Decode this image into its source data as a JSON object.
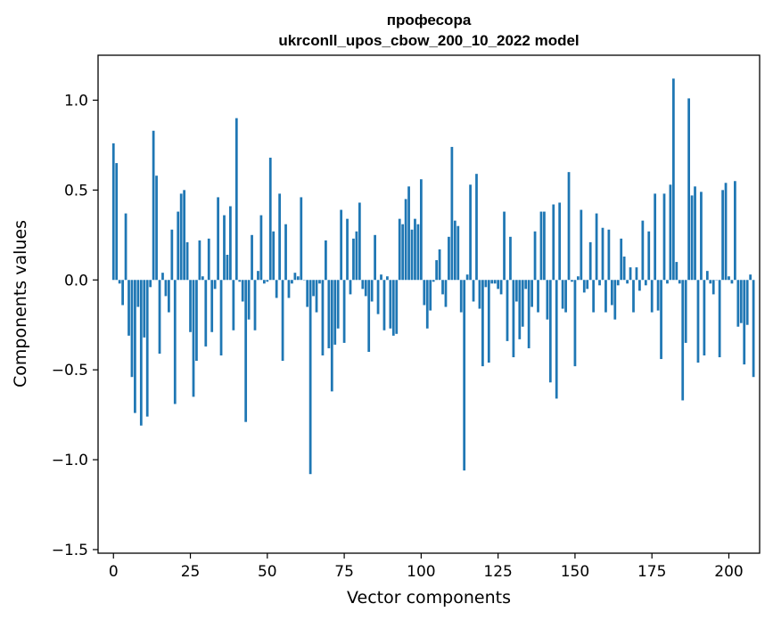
{
  "chart_data": {
    "type": "bar",
    "title_lines": [
      "професора",
      "ukrconll_upos_cbow_200_10_2022 model"
    ],
    "xlabel": "Vector components",
    "ylabel": "Components values",
    "xlim": [
      -5,
      210
    ],
    "ylim": [
      -1.52,
      1.25
    ],
    "xticks": [
      0,
      25,
      50,
      75,
      100,
      125,
      150,
      175,
      200
    ],
    "xtick_labels": [
      "0",
      "25",
      "50",
      "75",
      "100",
      "125",
      "150",
      "175",
      "200"
    ],
    "yticks": [
      -1.5,
      -1.0,
      -0.5,
      0.0,
      0.5,
      1.0
    ],
    "ytick_labels": [
      "−1.5",
      "−1.0",
      "−0.5",
      "0.0",
      "0.5",
      "1.0"
    ],
    "grid": false,
    "bar_color": "#1f77b4",
    "values": [
      0.76,
      0.65,
      -0.02,
      -0.14,
      0.37,
      -0.31,
      -0.54,
      -0.74,
      -0.15,
      -0.81,
      -0.32,
      -0.76,
      -0.04,
      0.83,
      0.58,
      -0.41,
      0.04,
      -0.09,
      -0.18,
      0.28,
      -0.69,
      0.38,
      0.48,
      0.5,
      0.21,
      -0.29,
      -0.65,
      -0.45,
      0.22,
      0.02,
      -0.37,
      0.23,
      -0.29,
      -0.05,
      0.46,
      -0.42,
      0.36,
      0.14,
      0.41,
      -0.28,
      0.9,
      -0.01,
      -0.12,
      -0.79,
      -0.22,
      0.25,
      -0.28,
      0.05,
      0.36,
      -0.02,
      -0.01,
      0.68,
      0.27,
      -0.1,
      0.48,
      -0.45,
      0.31,
      -0.1,
      -0.02,
      0.04,
      0.02,
      0.46,
      0.0,
      -0.15,
      -1.08,
      -0.09,
      -0.18,
      -0.02,
      -0.42,
      0.22,
      -0.38,
      -0.62,
      -0.36,
      -0.27,
      0.39,
      -0.35,
      0.34,
      -0.08,
      0.23,
      0.27,
      0.43,
      -0.05,
      -0.09,
      -0.4,
      -0.12,
      0.25,
      -0.19,
      0.03,
      -0.28,
      0.02,
      -0.27,
      -0.31,
      -0.3,
      0.34,
      0.31,
      0.45,
      0.52,
      0.28,
      0.34,
      0.31,
      0.56,
      -0.14,
      -0.27,
      -0.17,
      -0.01,
      0.11,
      0.17,
      -0.08,
      -0.15,
      0.24,
      0.74,
      0.33,
      0.3,
      -0.18,
      -1.06,
      0.03,
      0.53,
      -0.12,
      0.59,
      -0.16,
      -0.48,
      -0.04,
      -0.46,
      -0.02,
      -0.02,
      -0.05,
      -0.08,
      0.38,
      -0.34,
      0.24,
      -0.43,
      -0.12,
      -0.33,
      -0.26,
      -0.05,
      -0.38,
      -0.15,
      0.27,
      -0.18,
      0.38,
      0.38,
      -0.22,
      -0.57,
      0.42,
      -0.66,
      0.43,
      -0.16,
      -0.18,
      0.6,
      -0.01,
      -0.48,
      0.02,
      0.39,
      -0.07,
      -0.05,
      0.21,
      -0.18,
      0.37,
      -0.03,
      0.29,
      -0.18,
      0.28,
      -0.14,
      -0.22,
      -0.03,
      0.23,
      0.13,
      -0.02,
      0.07,
      -0.18,
      0.07,
      -0.06,
      0.33,
      -0.03,
      0.27,
      -0.18,
      0.48,
      -0.17,
      -0.44,
      0.48,
      -0.02,
      0.53,
      1.12,
      0.1,
      -0.02,
      -0.67,
      -0.35,
      1.01,
      0.47,
      0.52,
      -0.46,
      0.49,
      -0.42,
      0.05,
      -0.02,
      -0.08,
      0.0,
      -0.43,
      0.5,
      0.54,
      0.02,
      -0.02,
      0.55,
      -0.26,
      -0.24,
      -0.47,
      -0.25,
      0.03,
      -0.54
    ]
  }
}
